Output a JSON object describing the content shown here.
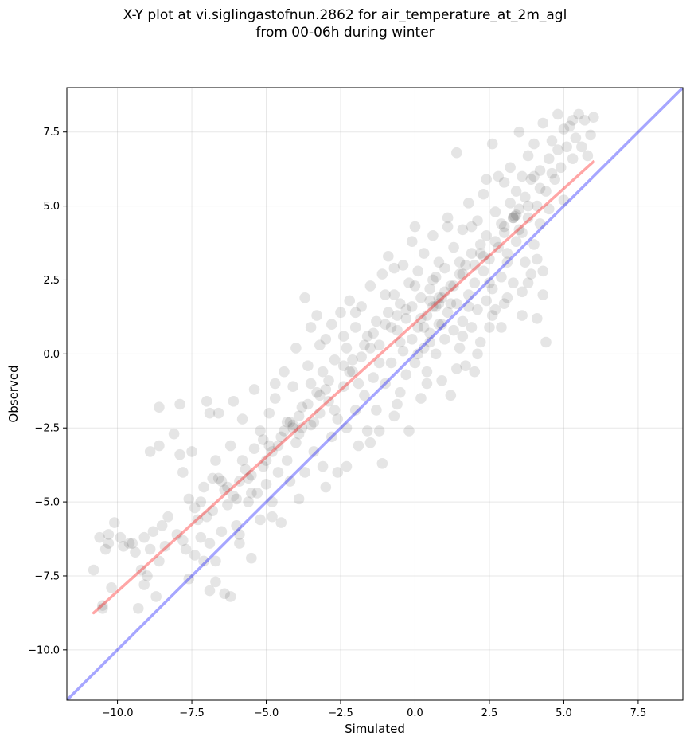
{
  "chart_data": {
    "type": "scatter",
    "title_lines": [
      "X-Y plot at vi.siglingastofnun.2862 for air_temperature_at_2m_agl",
      "from 00-06h during winter"
    ],
    "xlabel": "Simulated",
    "ylabel": "Observed",
    "xlim": [
      -11.7,
      9.0
    ],
    "ylim": [
      -11.7,
      9.0
    ],
    "xticks": [
      -10.0,
      -7.5,
      -5.0,
      -2.5,
      0.0,
      2.5,
      5.0,
      7.5
    ],
    "yticks": [
      -10.0,
      -7.5,
      -5.0,
      -2.5,
      0.0,
      2.5,
      5.0,
      7.5
    ],
    "xtick_labels": [
      "−10.0",
      "−7.5",
      "−5.0",
      "−2.5",
      "0.0",
      "2.5",
      "5.0",
      "7.5"
    ],
    "ytick_labels": [
      "−10.0",
      "−7.5",
      "−5.0",
      "−2.5",
      "0.0",
      "2.5",
      "5.0",
      "7.5"
    ],
    "grid": true,
    "point_color": "#000000",
    "point_alpha": 0.1,
    "regression_line": {
      "x": [
        -10.8,
        6.0
      ],
      "y": [
        -8.75,
        6.5
      ],
      "color": "#ff0000",
      "alpha": 0.35
    },
    "identity_line": {
      "x": [
        -11.7,
        9.0
      ],
      "y": [
        -11.7,
        9.0
      ],
      "color": "#0000ff",
      "alpha": 0.35
    },
    "points": [
      [
        -10.8,
        -7.3
      ],
      [
        -10.6,
        -6.2
      ],
      [
        -10.5,
        -8.6
      ],
      [
        -10.4,
        -6.6
      ],
      [
        -10.3,
        -6.1
      ],
      [
        -10.2,
        -7.9
      ],
      [
        -10.1,
        -5.7
      ],
      [
        -9.8,
        -6.5
      ],
      [
        -9.5,
        -6.4
      ],
      [
        -9.4,
        -6.7
      ],
      [
        -9.3,
        -8.6
      ],
      [
        -9.2,
        -7.3
      ],
      [
        -9.1,
        -6.2
      ],
      [
        -9.0,
        -7.5
      ],
      [
        -8.9,
        -6.6
      ],
      [
        -8.8,
        -6.0
      ],
      [
        -8.7,
        -8.2
      ],
      [
        -8.6,
        -7.0
      ],
      [
        -8.6,
        -3.1
      ],
      [
        -8.4,
        -6.5
      ],
      [
        -8.3,
        -5.5
      ],
      [
        -8.6,
        -1.8
      ],
      [
        -8.1,
        -2.7
      ],
      [
        -7.9,
        -3.4
      ],
      [
        -7.9,
        -1.7
      ],
      [
        -7.8,
        -6.3
      ],
      [
        -7.6,
        -4.9
      ],
      [
        -7.5,
        -3.3
      ],
      [
        -7.4,
        -6.8
      ],
      [
        -7.3,
        -5.6
      ],
      [
        -7.2,
        -6.2
      ],
      [
        -7.1,
        -7.0
      ],
      [
        -7.1,
        -4.5
      ],
      [
        -7.0,
        -1.6
      ],
      [
        -6.9,
        -6.4
      ],
      [
        -6.8,
        -4.2
      ],
      [
        -6.8,
        -5.3
      ],
      [
        -6.7,
        -7.7
      ],
      [
        -6.7,
        -3.6
      ],
      [
        -6.6,
        -2.0
      ],
      [
        -6.5,
        -6.0
      ],
      [
        -6.4,
        -8.1
      ],
      [
        -6.3,
        -5.1
      ],
      [
        -6.3,
        -4.5
      ],
      [
        -6.2,
        -3.1
      ],
      [
        -6.1,
        -1.6
      ],
      [
        -6.0,
        -5.8
      ],
      [
        -5.9,
        -4.3
      ],
      [
        -5.9,
        -6.4
      ],
      [
        -5.8,
        -2.2
      ],
      [
        -5.7,
        -3.9
      ],
      [
        -5.6,
        -5.0
      ],
      [
        -5.6,
        -4.2
      ],
      [
        -5.5,
        -6.9
      ],
      [
        -5.4,
        -3.2
      ],
      [
        -5.4,
        -1.2
      ],
      [
        -5.3,
        -4.7
      ],
      [
        -5.2,
        -2.6
      ],
      [
        -5.2,
        -5.6
      ],
      [
        -5.1,
        -3.8
      ],
      [
        -5.0,
        -4.4
      ],
      [
        -4.9,
        -2.0
      ],
      [
        -4.8,
        -5.0
      ],
      [
        -4.8,
        -3.3
      ],
      [
        -4.7,
        -1.5
      ],
      [
        -4.6,
        -4.0
      ],
      [
        -4.5,
        -2.8
      ],
      [
        -4.5,
        -5.7
      ],
      [
        -4.4,
        -0.6
      ],
      [
        -4.3,
        -3.6
      ],
      [
        -4.2,
        -2.3
      ],
      [
        -4.2,
        -4.3
      ],
      [
        -4.1,
        -1.1
      ],
      [
        -4.0,
        -3.0
      ],
      [
        -4.0,
        0.2
      ],
      [
        -3.9,
        -2.7
      ],
      [
        -3.8,
        -1.8
      ],
      [
        -3.7,
        -4.0
      ],
      [
        -3.7,
        1.9
      ],
      [
        -3.6,
        -0.4
      ],
      [
        -3.5,
        -2.4
      ],
      [
        -3.5,
        0.9
      ],
      [
        -3.4,
        -3.3
      ],
      [
        -3.3,
        -1.3
      ],
      [
        -3.3,
        1.3
      ],
      [
        -3.2,
        -2.0
      ],
      [
        -3.1,
        -0.6
      ],
      [
        -3.1,
        -3.8
      ],
      [
        -3.0,
        0.5
      ],
      [
        -2.9,
        -1.6
      ],
      [
        -2.8,
        -2.8
      ],
      [
        -2.8,
        1.0
      ],
      [
        -2.7,
        -0.2
      ],
      [
        -2.6,
        -2.2
      ],
      [
        -2.6,
        -4.0
      ],
      [
        -2.5,
        1.4
      ],
      [
        -2.4,
        -1.1
      ],
      [
        -2.3,
        0.2
      ],
      [
        -2.3,
        -2.5
      ],
      [
        -2.2,
        1.8
      ],
      [
        -2.1,
        -0.6
      ],
      [
        -2.0,
        -1.9
      ],
      [
        -2.0,
        0.9
      ],
      [
        -1.9,
        -3.1
      ],
      [
        -1.8,
        -0.1
      ],
      [
        -1.8,
        1.6
      ],
      [
        -1.7,
        -1.4
      ],
      [
        -1.6,
        0.6
      ],
      [
        -1.6,
        -2.6
      ],
      [
        -1.5,
        2.3
      ],
      [
        -1.4,
        -0.8
      ],
      [
        -1.3,
        1.1
      ],
      [
        -1.3,
        -1.9
      ],
      [
        -1.2,
        0.3
      ],
      [
        -1.1,
        2.7
      ],
      [
        -1.1,
        -3.7
      ],
      [
        -1.0,
        -1.0
      ],
      [
        -0.9,
        1.4
      ],
      [
        -0.9,
        3.3
      ],
      [
        -0.8,
        -0.3
      ],
      [
        -0.7,
        2.0
      ],
      [
        -0.7,
        -2.1
      ],
      [
        -0.6,
        0.8
      ],
      [
        -0.5,
        1.7
      ],
      [
        -0.5,
        -1.3
      ],
      [
        -0.4,
        0.1
      ],
      [
        -0.4,
        3.0
      ],
      [
        -0.3,
        1.2
      ],
      [
        -0.3,
        -0.7
      ],
      [
        -0.2,
        2.4
      ],
      [
        -0.2,
        -2.6
      ],
      [
        -0.1,
        0.5
      ],
      [
        -0.1,
        1.6
      ],
      [
        0.0,
        4.3
      ],
      [
        0.0,
        -0.3
      ],
      [
        0.1,
        2.8
      ],
      [
        0.1,
        0.9
      ],
      [
        0.2,
        -1.5
      ],
      [
        0.2,
        1.9
      ],
      [
        0.3,
        0.2
      ],
      [
        0.3,
        3.4
      ],
      [
        0.4,
        1.3
      ],
      [
        0.4,
        -0.6
      ],
      [
        0.5,
        2.2
      ],
      [
        0.5,
        0.7
      ],
      [
        0.6,
        4.0
      ],
      [
        0.6,
        1.6
      ],
      [
        0.7,
        0.0
      ],
      [
        0.7,
        2.6
      ],
      [
        0.8,
        1.0
      ],
      [
        0.8,
        3.1
      ],
      [
        0.9,
        -0.9
      ],
      [
        0.9,
        1.9
      ],
      [
        1.0,
        0.5
      ],
      [
        1.0,
        2.9
      ],
      [
        1.1,
        1.4
      ],
      [
        1.1,
        4.6
      ],
      [
        1.2,
        -1.4
      ],
      [
        1.2,
        2.3
      ],
      [
        1.3,
        0.8
      ],
      [
        1.3,
        3.6
      ],
      [
        1.4,
        1.7
      ],
      [
        1.4,
        6.8
      ],
      [
        1.5,
        0.2
      ],
      [
        1.5,
        2.7
      ],
      [
        1.6,
        4.2
      ],
      [
        1.6,
        1.1
      ],
      [
        1.7,
        3.0
      ],
      [
        1.7,
        -0.4
      ],
      [
        1.8,
        2.0
      ],
      [
        1.8,
        5.1
      ],
      [
        1.9,
        0.9
      ],
      [
        1.9,
        3.4
      ],
      [
        2.0,
        2.4
      ],
      [
        2.0,
        -0.6
      ],
      [
        2.1,
        4.5
      ],
      [
        2.1,
        1.5
      ],
      [
        2.2,
        3.7
      ],
      [
        2.2,
        0.4
      ],
      [
        2.3,
        2.8
      ],
      [
        2.3,
        5.4
      ],
      [
        2.4,
        1.8
      ],
      [
        2.4,
        4.0
      ],
      [
        2.5,
        0.9
      ],
      [
        2.5,
        3.2
      ],
      [
        2.6,
        7.1
      ],
      [
        2.6,
        2.2
      ],
      [
        2.7,
        4.8
      ],
      [
        2.7,
        1.5
      ],
      [
        2.8,
        3.6
      ],
      [
        2.8,
        6.0
      ],
      [
        2.9,
        2.6
      ],
      [
        2.9,
        0.9
      ],
      [
        3.0,
        4.3
      ],
      [
        3.0,
        5.8
      ],
      [
        3.1,
        3.1
      ],
      [
        3.1,
        1.9
      ],
      [
        3.2,
        5.1
      ],
      [
        3.2,
        6.3
      ],
      [
        3.3,
        4.6
      ],
      [
        3.3,
        2.4
      ],
      [
        3.4,
        5.5
      ],
      [
        3.4,
        3.8
      ],
      [
        3.5,
        7.5
      ],
      [
        3.5,
        4.2
      ],
      [
        3.6,
        1.3
      ],
      [
        3.6,
        6.0
      ],
      [
        3.7,
        3.1
      ],
      [
        3.7,
        5.3
      ],
      [
        3.8,
        6.7
      ],
      [
        3.8,
        4.6
      ],
      [
        3.9,
        2.7
      ],
      [
        3.9,
        5.9
      ],
      [
        4.0,
        3.7
      ],
      [
        4.0,
        7.1
      ],
      [
        4.1,
        5.0
      ],
      [
        4.1,
        1.2
      ],
      [
        4.2,
        6.2
      ],
      [
        4.2,
        4.4
      ],
      [
        4.3,
        7.8
      ],
      [
        4.3,
        2.8
      ],
      [
        4.4,
        5.5
      ],
      [
        4.4,
        0.4
      ],
      [
        4.5,
        6.6
      ],
      [
        4.5,
        4.9
      ],
      [
        4.6,
        7.2
      ],
      [
        4.7,
        5.9
      ],
      [
        4.8,
        6.9
      ],
      [
        4.8,
        8.1
      ],
      [
        4.9,
        6.3
      ],
      [
        5.0,
        7.6
      ],
      [
        5.0,
        5.2
      ],
      [
        5.1,
        7.0
      ],
      [
        5.2,
        7.7
      ],
      [
        5.3,
        6.6
      ],
      [
        5.4,
        7.3
      ],
      [
        5.5,
        8.1
      ],
      [
        5.6,
        7.0
      ],
      [
        5.7,
        7.9
      ],
      [
        5.8,
        6.7
      ],
      [
        5.9,
        7.4
      ],
      [
        6.0,
        8.0
      ],
      [
        -9.9,
        -6.2
      ],
      [
        -8.5,
        -5.8
      ],
      [
        -7.7,
        -6.6
      ],
      [
        -7.0,
        -5.5
      ],
      [
        -6.4,
        -4.6
      ],
      [
        -6.0,
        -4.9
      ],
      [
        -5.5,
        -4.7
      ],
      [
        -5.0,
        -3.6
      ],
      [
        -4.6,
        -3.1
      ],
      [
        -4.1,
        -2.5
      ],
      [
        -3.9,
        -2.1
      ],
      [
        -3.6,
        -1.7
      ],
      [
        -3.2,
        -1.4
      ],
      [
        -2.9,
        -0.9
      ],
      [
        -2.4,
        -0.4
      ],
      [
        -2.1,
        -0.2
      ],
      [
        -1.7,
        0.3
      ],
      [
        -1.4,
        0.7
      ],
      [
        -1.0,
        1.0
      ],
      [
        -0.6,
        1.3
      ],
      [
        -0.3,
        1.5
      ],
      [
        0.2,
        1.2
      ],
      [
        0.5,
        1.8
      ],
      [
        0.8,
        1.9
      ],
      [
        1.0,
        2.1
      ],
      [
        1.3,
        2.3
      ],
      [
        1.6,
        2.7
      ],
      [
        2.0,
        3.0
      ],
      [
        2.3,
        3.3
      ],
      [
        2.7,
        3.8
      ],
      [
        3.0,
        4.1
      ],
      [
        3.4,
        4.7
      ],
      [
        3.8,
        5.0
      ],
      [
        4.2,
        5.6
      ],
      [
        -6.5,
        -4.3
      ],
      [
        -5.8,
        -3.6
      ],
      [
        -4.3,
        -2.3
      ],
      [
        -3.4,
        -2.3
      ],
      [
        -2.7,
        -1.9
      ],
      [
        -1.9,
        -1.0
      ],
      [
        -1.2,
        -0.3
      ],
      [
        -0.5,
        0.4
      ],
      [
        0.3,
        0.9
      ],
      [
        0.9,
        1.0
      ],
      [
        1.2,
        1.7
      ],
      [
        1.8,
        1.6
      ],
      [
        2.5,
        2.4
      ],
      [
        3.1,
        3.4
      ],
      [
        3.6,
        4.1
      ],
      [
        -7.4,
        -5.2
      ],
      [
        -6.1,
        -4.8
      ],
      [
        -4.9,
        -3.1
      ],
      [
        -4.4,
        -2.6
      ],
      [
        -3.0,
        -1.2
      ],
      [
        -2.2,
        -0.6
      ],
      [
        -1.5,
        0.2
      ],
      [
        -0.8,
        0.9
      ],
      [
        0.0,
        2.3
      ],
      [
        0.6,
        2.5
      ],
      [
        1.5,
        3.1
      ],
      [
        2.2,
        3.4
      ],
      [
        2.9,
        4.4
      ],
      [
        3.5,
        4.9
      ],
      [
        3.3,
        4.6
      ],
      [
        3.35,
        4.65
      ],
      [
        0.7,
        1.6
      ],
      [
        0.8,
        1.7
      ],
      [
        -4.1,
        -2.4
      ],
      [
        -3.8,
        -2.5
      ],
      [
        -5.5,
        -4.1
      ],
      [
        -6.6,
        -4.2
      ],
      [
        -9.6,
        -6.4
      ],
      [
        -10.3,
        -6.4
      ],
      [
        -8.0,
        -6.1
      ],
      [
        -7.2,
        -5.0
      ],
      [
        -5.1,
        -2.9
      ],
      [
        -3.5,
        -1.0
      ],
      [
        -2.4,
        0.6
      ],
      [
        -1.0,
        2.0
      ],
      [
        -0.1,
        3.8
      ],
      [
        1.9,
        4.3
      ],
      [
        4.0,
        6.0
      ],
      [
        4.6,
        6.1
      ],
      [
        5.3,
        7.9
      ],
      [
        2.4,
        5.9
      ],
      [
        1.1,
        4.3
      ],
      [
        -0.7,
        2.9
      ],
      [
        -2.0,
        1.4
      ],
      [
        -3.2,
        0.3
      ],
      [
        -4.7,
        -1.0
      ],
      [
        -6.9,
        -2.0
      ],
      [
        -8.9,
        -3.3
      ],
      [
        -7.8,
        -4.0
      ],
      [
        -1.2,
        -2.6
      ],
      [
        0.4,
        -1.0
      ],
      [
        1.4,
        -0.5
      ],
      [
        2.1,
        0.0
      ],
      [
        3.0,
        1.7
      ],
      [
        3.8,
        2.4
      ],
      [
        4.1,
        3.2
      ],
      [
        4.3,
        2.0
      ],
      [
        -0.6,
        -1.7
      ],
      [
        -1.5,
        -3.0
      ],
      [
        -2.3,
        -3.8
      ],
      [
        -3.0,
        -4.5
      ],
      [
        -3.9,
        -4.9
      ],
      [
        -4.8,
        -5.5
      ],
      [
        -5.9,
        -6.1
      ],
      [
        -6.7,
        -7.0
      ],
      [
        -7.6,
        -7.6
      ],
      [
        -6.2,
        -8.2
      ],
      [
        -6.9,
        -8.0
      ],
      [
        -9.1,
        -7.8
      ],
      [
        -10.5,
        -8.5
      ],
      [
        0.1,
        0.0
      ],
      [
        0.5,
        0.4
      ],
      [
        1.6,
        0.6
      ],
      [
        2.6,
        1.3
      ],
      [
        3.6,
        2.1
      ]
    ]
  }
}
